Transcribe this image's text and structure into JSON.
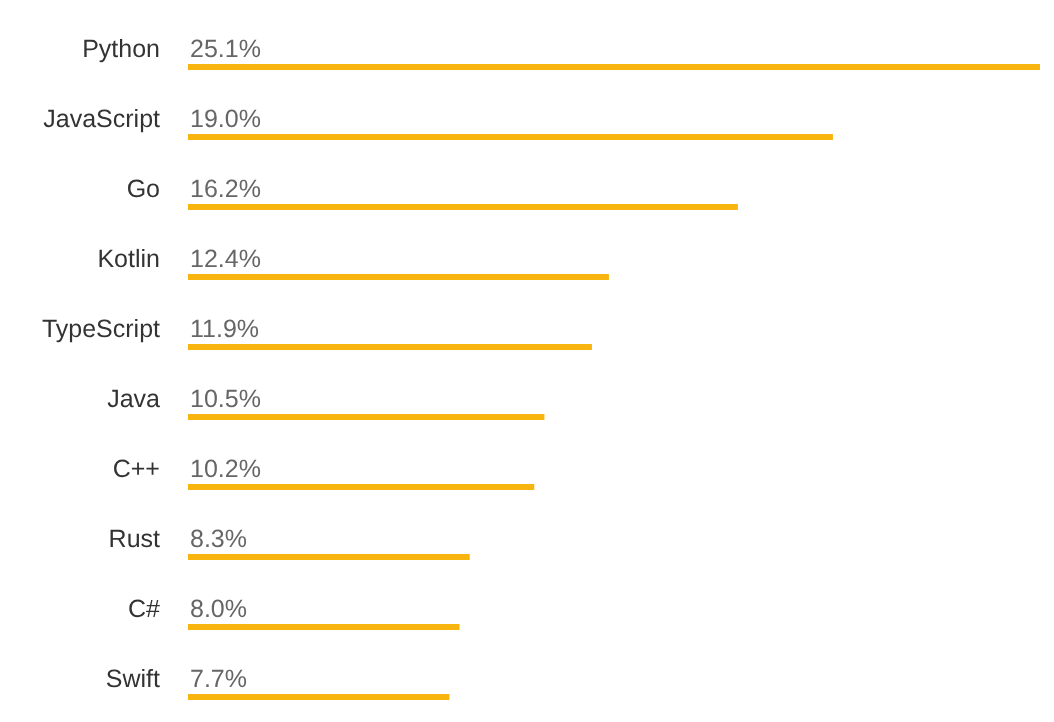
{
  "chart_data": {
    "type": "bar",
    "orientation": "horizontal",
    "categories": [
      "Python",
      "JavaScript",
      "Go",
      "Kotlin",
      "TypeScript",
      "Java",
      "C++",
      "Rust",
      "C#",
      "Swift"
    ],
    "values": [
      25.1,
      19.0,
      16.2,
      12.4,
      11.9,
      10.5,
      10.2,
      8.3,
      8.0,
      7.7
    ],
    "value_labels": [
      "25.1%",
      "19.0%",
      "16.2%",
      "12.4%",
      "11.9%",
      "10.5%",
      "10.2%",
      "8.3%",
      "8.0%",
      "7.7%"
    ],
    "color": "#f9b50f",
    "legend": false,
    "grid": false
  }
}
